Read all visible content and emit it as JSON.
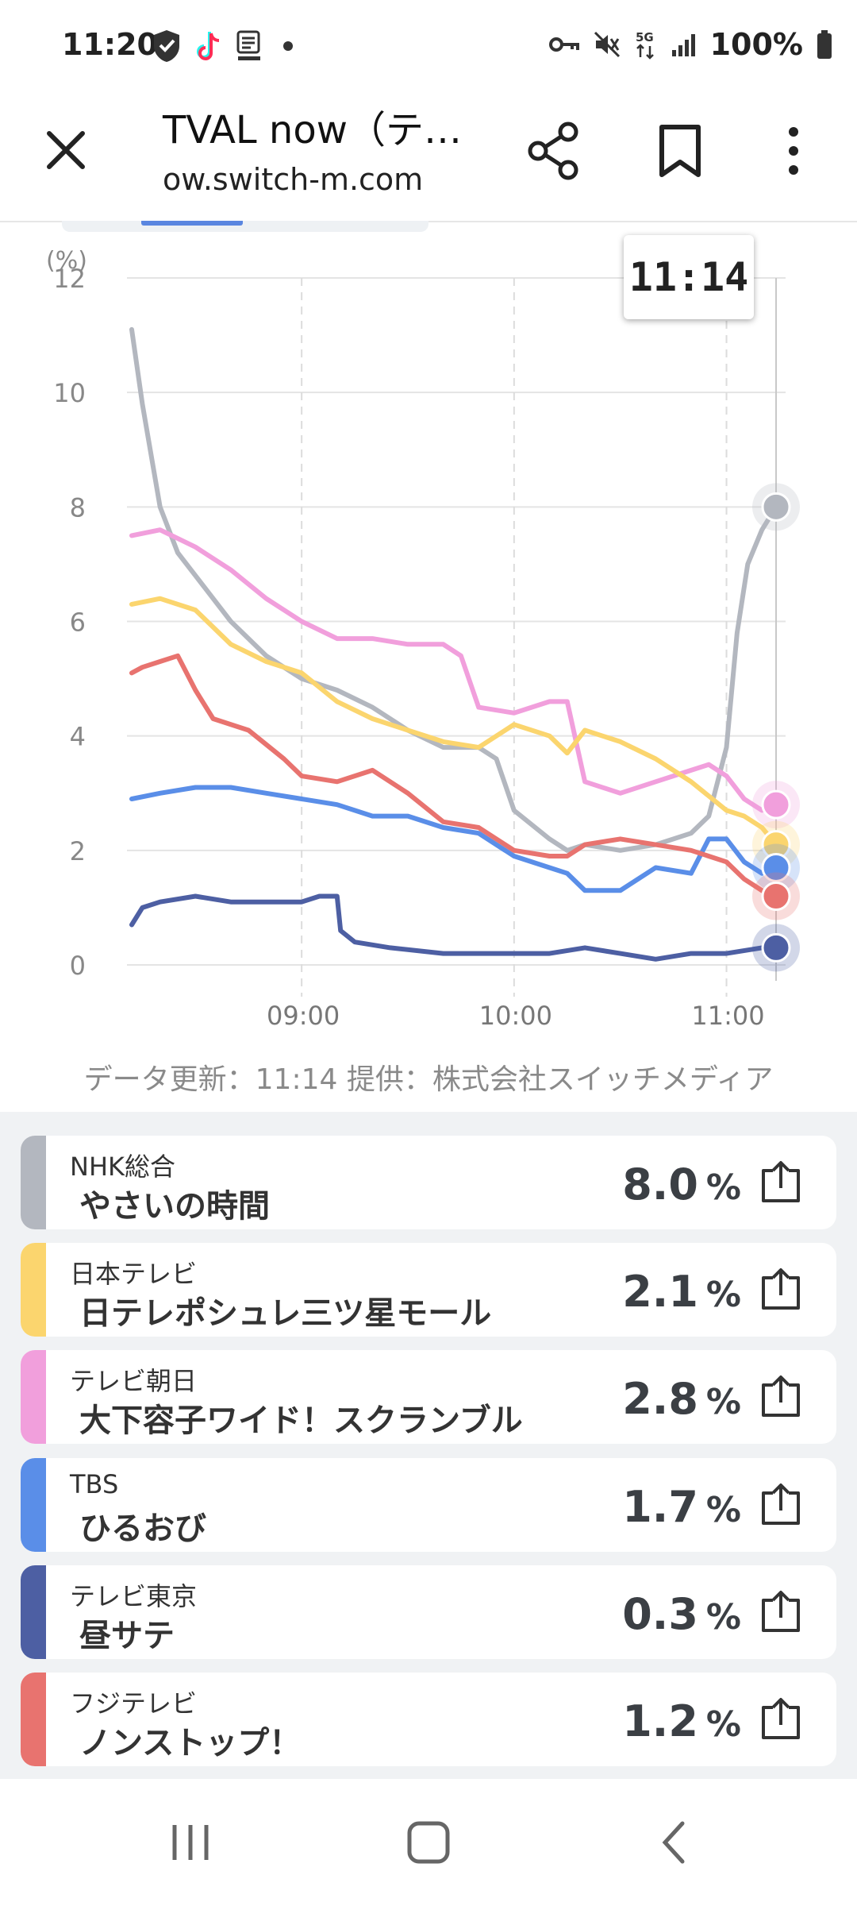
{
  "status_bar": {
    "time": "11:20",
    "battery": "100%",
    "network": "5G",
    "left_icons": [
      "shield-icon",
      "tiktok-icon",
      "dmenu-icon",
      "dot-icon"
    ],
    "right_icons": [
      "key-icon",
      "mute-icon",
      "5g-icon",
      "signal-icon",
      "battery-icon"
    ]
  },
  "browser": {
    "title": "TVAL now（テ…",
    "url": "ow.switch-m.com"
  },
  "chart_data": {
    "type": "line",
    "ylabel": "(%)",
    "ylim": [
      0,
      12
    ],
    "yticks": [
      "0",
      "2",
      "4",
      "6",
      "8",
      "10",
      "12"
    ],
    "x_tick_labels": [
      "09:00",
      "10:00",
      "11:00"
    ],
    "x_time_range": [
      "08:12",
      "11:14"
    ],
    "tooltip": "11:14",
    "series": [
      {
        "name": "NHK総合",
        "color": "#b3b7bf",
        "points": [
          [
            "08:12",
            11.1
          ],
          [
            "08:15",
            9.8
          ],
          [
            "08:20",
            8.0
          ],
          [
            "08:25",
            7.2
          ],
          [
            "08:30",
            6.8
          ],
          [
            "08:40",
            6.0
          ],
          [
            "08:50",
            5.4
          ],
          [
            "09:00",
            5.0
          ],
          [
            "09:10",
            4.8
          ],
          [
            "09:20",
            4.5
          ],
          [
            "09:30",
            4.1
          ],
          [
            "09:40",
            3.8
          ],
          [
            "09:50",
            3.8
          ],
          [
            "09:55",
            3.6
          ],
          [
            "10:00",
            2.7
          ],
          [
            "10:10",
            2.2
          ],
          [
            "10:15",
            2.0
          ],
          [
            "10:20",
            2.1
          ],
          [
            "10:30",
            2.0
          ],
          [
            "10:40",
            2.1
          ],
          [
            "10:50",
            2.3
          ],
          [
            "10:55",
            2.6
          ],
          [
            "11:00",
            3.8
          ],
          [
            "11:03",
            5.8
          ],
          [
            "11:06",
            7.0
          ],
          [
            "11:10",
            7.6
          ],
          [
            "11:14",
            8.0
          ]
        ]
      },
      {
        "name": "テレビ朝日",
        "color": "#f19fdc",
        "points": [
          [
            "08:12",
            7.5
          ],
          [
            "08:20",
            7.6
          ],
          [
            "08:30",
            7.3
          ],
          [
            "08:40",
            6.9
          ],
          [
            "08:50",
            6.4
          ],
          [
            "09:00",
            6.0
          ],
          [
            "09:10",
            5.7
          ],
          [
            "09:20",
            5.7
          ],
          [
            "09:30",
            5.6
          ],
          [
            "09:40",
            5.6
          ],
          [
            "09:45",
            5.4
          ],
          [
            "09:50",
            4.5
          ],
          [
            "10:00",
            4.4
          ],
          [
            "10:10",
            4.6
          ],
          [
            "10:15",
            4.6
          ],
          [
            "10:20",
            3.2
          ],
          [
            "10:30",
            3.0
          ],
          [
            "10:40",
            3.2
          ],
          [
            "10:50",
            3.4
          ],
          [
            "10:55",
            3.5
          ],
          [
            "11:00",
            3.3
          ],
          [
            "11:05",
            2.9
          ],
          [
            "11:10",
            2.7
          ],
          [
            "11:14",
            2.8
          ]
        ]
      },
      {
        "name": "日本テレビ",
        "color": "#fbd56e",
        "points": [
          [
            "08:12",
            6.3
          ],
          [
            "08:20",
            6.4
          ],
          [
            "08:30",
            6.2
          ],
          [
            "08:40",
            5.6
          ],
          [
            "08:50",
            5.3
          ],
          [
            "09:00",
            5.1
          ],
          [
            "09:10",
            4.6
          ],
          [
            "09:20",
            4.3
          ],
          [
            "09:30",
            4.1
          ],
          [
            "09:40",
            3.9
          ],
          [
            "09:50",
            3.8
          ],
          [
            "10:00",
            4.2
          ],
          [
            "10:10",
            4.0
          ],
          [
            "10:15",
            3.7
          ],
          [
            "10:20",
            4.1
          ],
          [
            "10:30",
            3.9
          ],
          [
            "10:40",
            3.6
          ],
          [
            "10:50",
            3.2
          ],
          [
            "11:00",
            2.7
          ],
          [
            "11:05",
            2.6
          ],
          [
            "11:10",
            2.4
          ],
          [
            "11:14",
            2.1
          ]
        ]
      },
      {
        "name": "TBS",
        "color": "#5a8ee8",
        "points": [
          [
            "08:12",
            2.9
          ],
          [
            "08:20",
            3.0
          ],
          [
            "08:30",
            3.1
          ],
          [
            "08:40",
            3.1
          ],
          [
            "08:50",
            3.0
          ],
          [
            "09:00",
            2.9
          ],
          [
            "09:10",
            2.8
          ],
          [
            "09:20",
            2.6
          ],
          [
            "09:30",
            2.6
          ],
          [
            "09:40",
            2.4
          ],
          [
            "09:50",
            2.3
          ],
          [
            "10:00",
            1.9
          ],
          [
            "10:10",
            1.7
          ],
          [
            "10:15",
            1.6
          ],
          [
            "10:20",
            1.3
          ],
          [
            "10:30",
            1.3
          ],
          [
            "10:40",
            1.7
          ],
          [
            "10:50",
            1.6
          ],
          [
            "10:55",
            2.2
          ],
          [
            "11:00",
            2.2
          ],
          [
            "11:05",
            1.8
          ],
          [
            "11:10",
            1.6
          ],
          [
            "11:14",
            1.7
          ]
        ]
      },
      {
        "name": "フジテレビ",
        "color": "#e8736f",
        "points": [
          [
            "08:12",
            5.1
          ],
          [
            "08:15",
            5.2
          ],
          [
            "08:20",
            5.3
          ],
          [
            "08:25",
            5.4
          ],
          [
            "08:30",
            4.8
          ],
          [
            "08:35",
            4.3
          ],
          [
            "08:45",
            4.1
          ],
          [
            "08:55",
            3.6
          ],
          [
            "09:00",
            3.3
          ],
          [
            "09:10",
            3.2
          ],
          [
            "09:20",
            3.4
          ],
          [
            "09:30",
            3.0
          ],
          [
            "09:40",
            2.5
          ],
          [
            "09:50",
            2.4
          ],
          [
            "10:00",
            2.0
          ],
          [
            "10:10",
            1.9
          ],
          [
            "10:15",
            1.9
          ],
          [
            "10:20",
            2.1
          ],
          [
            "10:30",
            2.2
          ],
          [
            "10:40",
            2.1
          ],
          [
            "10:50",
            2.0
          ],
          [
            "11:00",
            1.8
          ],
          [
            "11:05",
            1.5
          ],
          [
            "11:10",
            1.3
          ],
          [
            "11:14",
            1.2
          ]
        ]
      },
      {
        "name": "テレビ東京",
        "color": "#4d5fa3",
        "points": [
          [
            "08:12",
            0.7
          ],
          [
            "08:15",
            1.0
          ],
          [
            "08:20",
            1.1
          ],
          [
            "08:30",
            1.2
          ],
          [
            "08:40",
            1.1
          ],
          [
            "08:50",
            1.1
          ],
          [
            "09:00",
            1.1
          ],
          [
            "09:05",
            1.2
          ],
          [
            "09:10",
            1.2
          ],
          [
            "09:11",
            0.6
          ],
          [
            "09:15",
            0.4
          ],
          [
            "09:25",
            0.3
          ],
          [
            "09:40",
            0.2
          ],
          [
            "09:50",
            0.2
          ],
          [
            "10:00",
            0.2
          ],
          [
            "10:10",
            0.2
          ],
          [
            "10:20",
            0.3
          ],
          [
            "10:30",
            0.2
          ],
          [
            "10:40",
            0.1
          ],
          [
            "10:50",
            0.2
          ],
          [
            "11:00",
            0.2
          ],
          [
            "11:10",
            0.3
          ],
          [
            "11:14",
            0.3
          ]
        ]
      }
    ]
  },
  "footer_note": "データ更新：11:14  提供：株式会社スイッチメディア",
  "channels": [
    {
      "channel": "NHK総合",
      "program": "やさいの時間",
      "value": "8.0",
      "unit": "%",
      "color": "#b3b7bf"
    },
    {
      "channel": "日本テレビ",
      "program": "日テレポシュレ三ツ星モール",
      "value": "2.1",
      "unit": "%",
      "color": "#fbd56e"
    },
    {
      "channel": "テレビ朝日",
      "program": "大下容子ワイド！スクランブル",
      "value": "2.8",
      "unit": "%",
      "color": "#f19fdc"
    },
    {
      "channel": "TBS",
      "program": "ひるおび",
      "value": "1.7",
      "unit": "%",
      "color": "#5a8ee8"
    },
    {
      "channel": "テレビ東京",
      "program": "昼サテ",
      "value": "0.3",
      "unit": "%",
      "color": "#4d5fa3"
    },
    {
      "channel": "フジテレビ",
      "program": "ノンストップ！",
      "value": "1.2",
      "unit": "%",
      "color": "#e8736f"
    }
  ],
  "nav": [
    "recent-apps",
    "home",
    "back"
  ]
}
